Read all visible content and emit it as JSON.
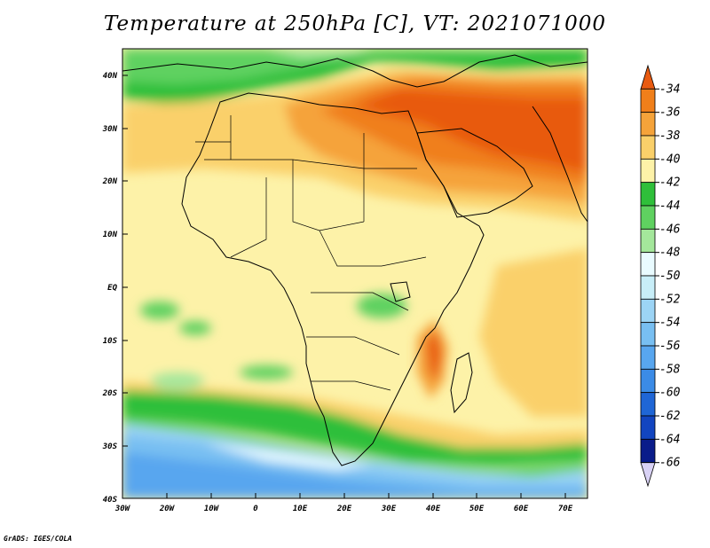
{
  "title": "Temperature at 250hPa [C], VT: 2021071000",
  "credit": "GrADS: IGES/COLA",
  "map": {
    "lat_ticks": [
      "40N",
      "30N",
      "20N",
      "10N",
      "EQ",
      "10S",
      "20S",
      "30S",
      "40S"
    ],
    "lon_ticks": [
      "30W",
      "20W",
      "10W",
      "0",
      "10E",
      "20E",
      "30E",
      "40E",
      "50E",
      "60E",
      "70E"
    ],
    "lat_range": [
      -40,
      45
    ],
    "lon_range": [
      -30,
      75
    ]
  },
  "colorbar": {
    "levels": [
      "-34",
      "-36",
      "-38",
      "-40",
      "-42",
      "-44",
      "-46",
      "-48",
      "-50",
      "-52",
      "-54",
      "-56",
      "-58",
      "-60",
      "-62",
      "-64",
      "-66"
    ],
    "colors": [
      "#e85a10",
      "#f07f1a",
      "#f5a33a",
      "#fad06a",
      "#fdf2a8",
      "#2fbf3a",
      "#5fd160",
      "#a4e79b",
      "#e9fbff",
      "#c8eef8",
      "#9cd4f5",
      "#78bff2",
      "#58a6ef",
      "#3b8be6",
      "#1f66d6",
      "#1245c0",
      "#0a1c8a",
      "#d9d2f5"
    ]
  }
}
